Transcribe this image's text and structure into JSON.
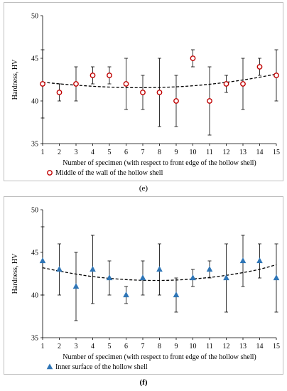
{
  "chart_data": [
    {
      "type": "scatter",
      "panel_label": "(e)",
      "xlabel": "Number of specimen (with respect to front edge of the hollow shell)",
      "ylabel": "Hardness, HV",
      "xlim": [
        1,
        15
      ],
      "ylim": [
        35,
        50
      ],
      "x_ticks": [
        "1",
        "2",
        "3",
        "4",
        "5",
        "6",
        "7",
        "8",
        "9",
        "10",
        "11",
        "12",
        "13",
        "14",
        "15"
      ],
      "y_ticks": [
        "35",
        "40",
        "45",
        "50"
      ],
      "grid": false,
      "legend_position": "bottom-left",
      "marker": "circle",
      "marker_color": "#c00000",
      "trend_line": "dashed polynomial",
      "series": [
        {
          "name": "Middle of the wall of the hollow shell",
          "x": [
            1,
            2,
            3,
            4,
            5,
            6,
            7,
            8,
            9,
            10,
            11,
            12,
            13,
            14,
            15
          ],
          "y": [
            42,
            41,
            42,
            43,
            43,
            42,
            41,
            41,
            40,
            45,
            40,
            42,
            42,
            44,
            43
          ],
          "err_low": [
            38,
            40,
            40,
            42,
            42,
            39,
            39,
            37,
            37,
            44,
            36,
            41,
            39,
            43,
            40
          ],
          "err_high": [
            46,
            42,
            44,
            44,
            44,
            45,
            43,
            45,
            43,
            46,
            44,
            43,
            45,
            45,
            46
          ]
        }
      ],
      "trend": {
        "x": [
          1,
          2,
          3,
          4,
          5,
          6,
          7,
          8,
          9,
          10,
          11,
          12,
          13,
          14,
          15
        ],
        "y": [
          42.2,
          42.0,
          41.85,
          41.72,
          41.62,
          41.56,
          41.55,
          41.58,
          41.65,
          41.77,
          41.95,
          42.18,
          42.45,
          42.78,
          43.15
        ]
      }
    },
    {
      "type": "scatter",
      "panel_label": "(f)",
      "xlabel": "Number of specimen (with respect to front edge of the hollow shell)",
      "ylabel": "Hardness, HV",
      "xlim": [
        1,
        15
      ],
      "ylim": [
        35,
        50
      ],
      "x_ticks": [
        "1",
        "2",
        "3",
        "4",
        "5",
        "6",
        "7",
        "8",
        "9",
        "10",
        "11",
        "12",
        "13",
        "14",
        "15"
      ],
      "y_ticks": [
        "35",
        "40",
        "45",
        "50"
      ],
      "grid": false,
      "legend_position": "bottom-left",
      "marker": "triangle",
      "marker_color": "#2e75b6",
      "trend_line": "dashed polynomial",
      "series": [
        {
          "name": "Inner surface of the hollow shell",
          "x": [
            1,
            2,
            3,
            4,
            5,
            6,
            7,
            8,
            9,
            10,
            11,
            12,
            13,
            14,
            15
          ],
          "y": [
            44,
            43,
            41,
            43,
            42,
            40,
            42,
            43,
            40,
            42,
            43,
            42,
            44,
            44,
            42
          ],
          "err_low": [
            40,
            40,
            37,
            39,
            40,
            39,
            40,
            40,
            38,
            41,
            42,
            38,
            41,
            42,
            38
          ],
          "err_high": [
            48,
            46,
            45,
            47,
            44,
            41,
            44,
            46,
            42,
            43,
            44,
            46,
            47,
            46,
            46
          ]
        }
      ],
      "trend": {
        "x": [
          1,
          2,
          3,
          4,
          5,
          6,
          7,
          8,
          9,
          10,
          11,
          12,
          13,
          14,
          15
        ],
        "y": [
          43.2,
          42.8,
          42.45,
          42.15,
          41.95,
          41.8,
          41.72,
          41.7,
          41.75,
          41.88,
          42.05,
          42.3,
          42.62,
          43.0,
          43.55
        ]
      }
    }
  ]
}
